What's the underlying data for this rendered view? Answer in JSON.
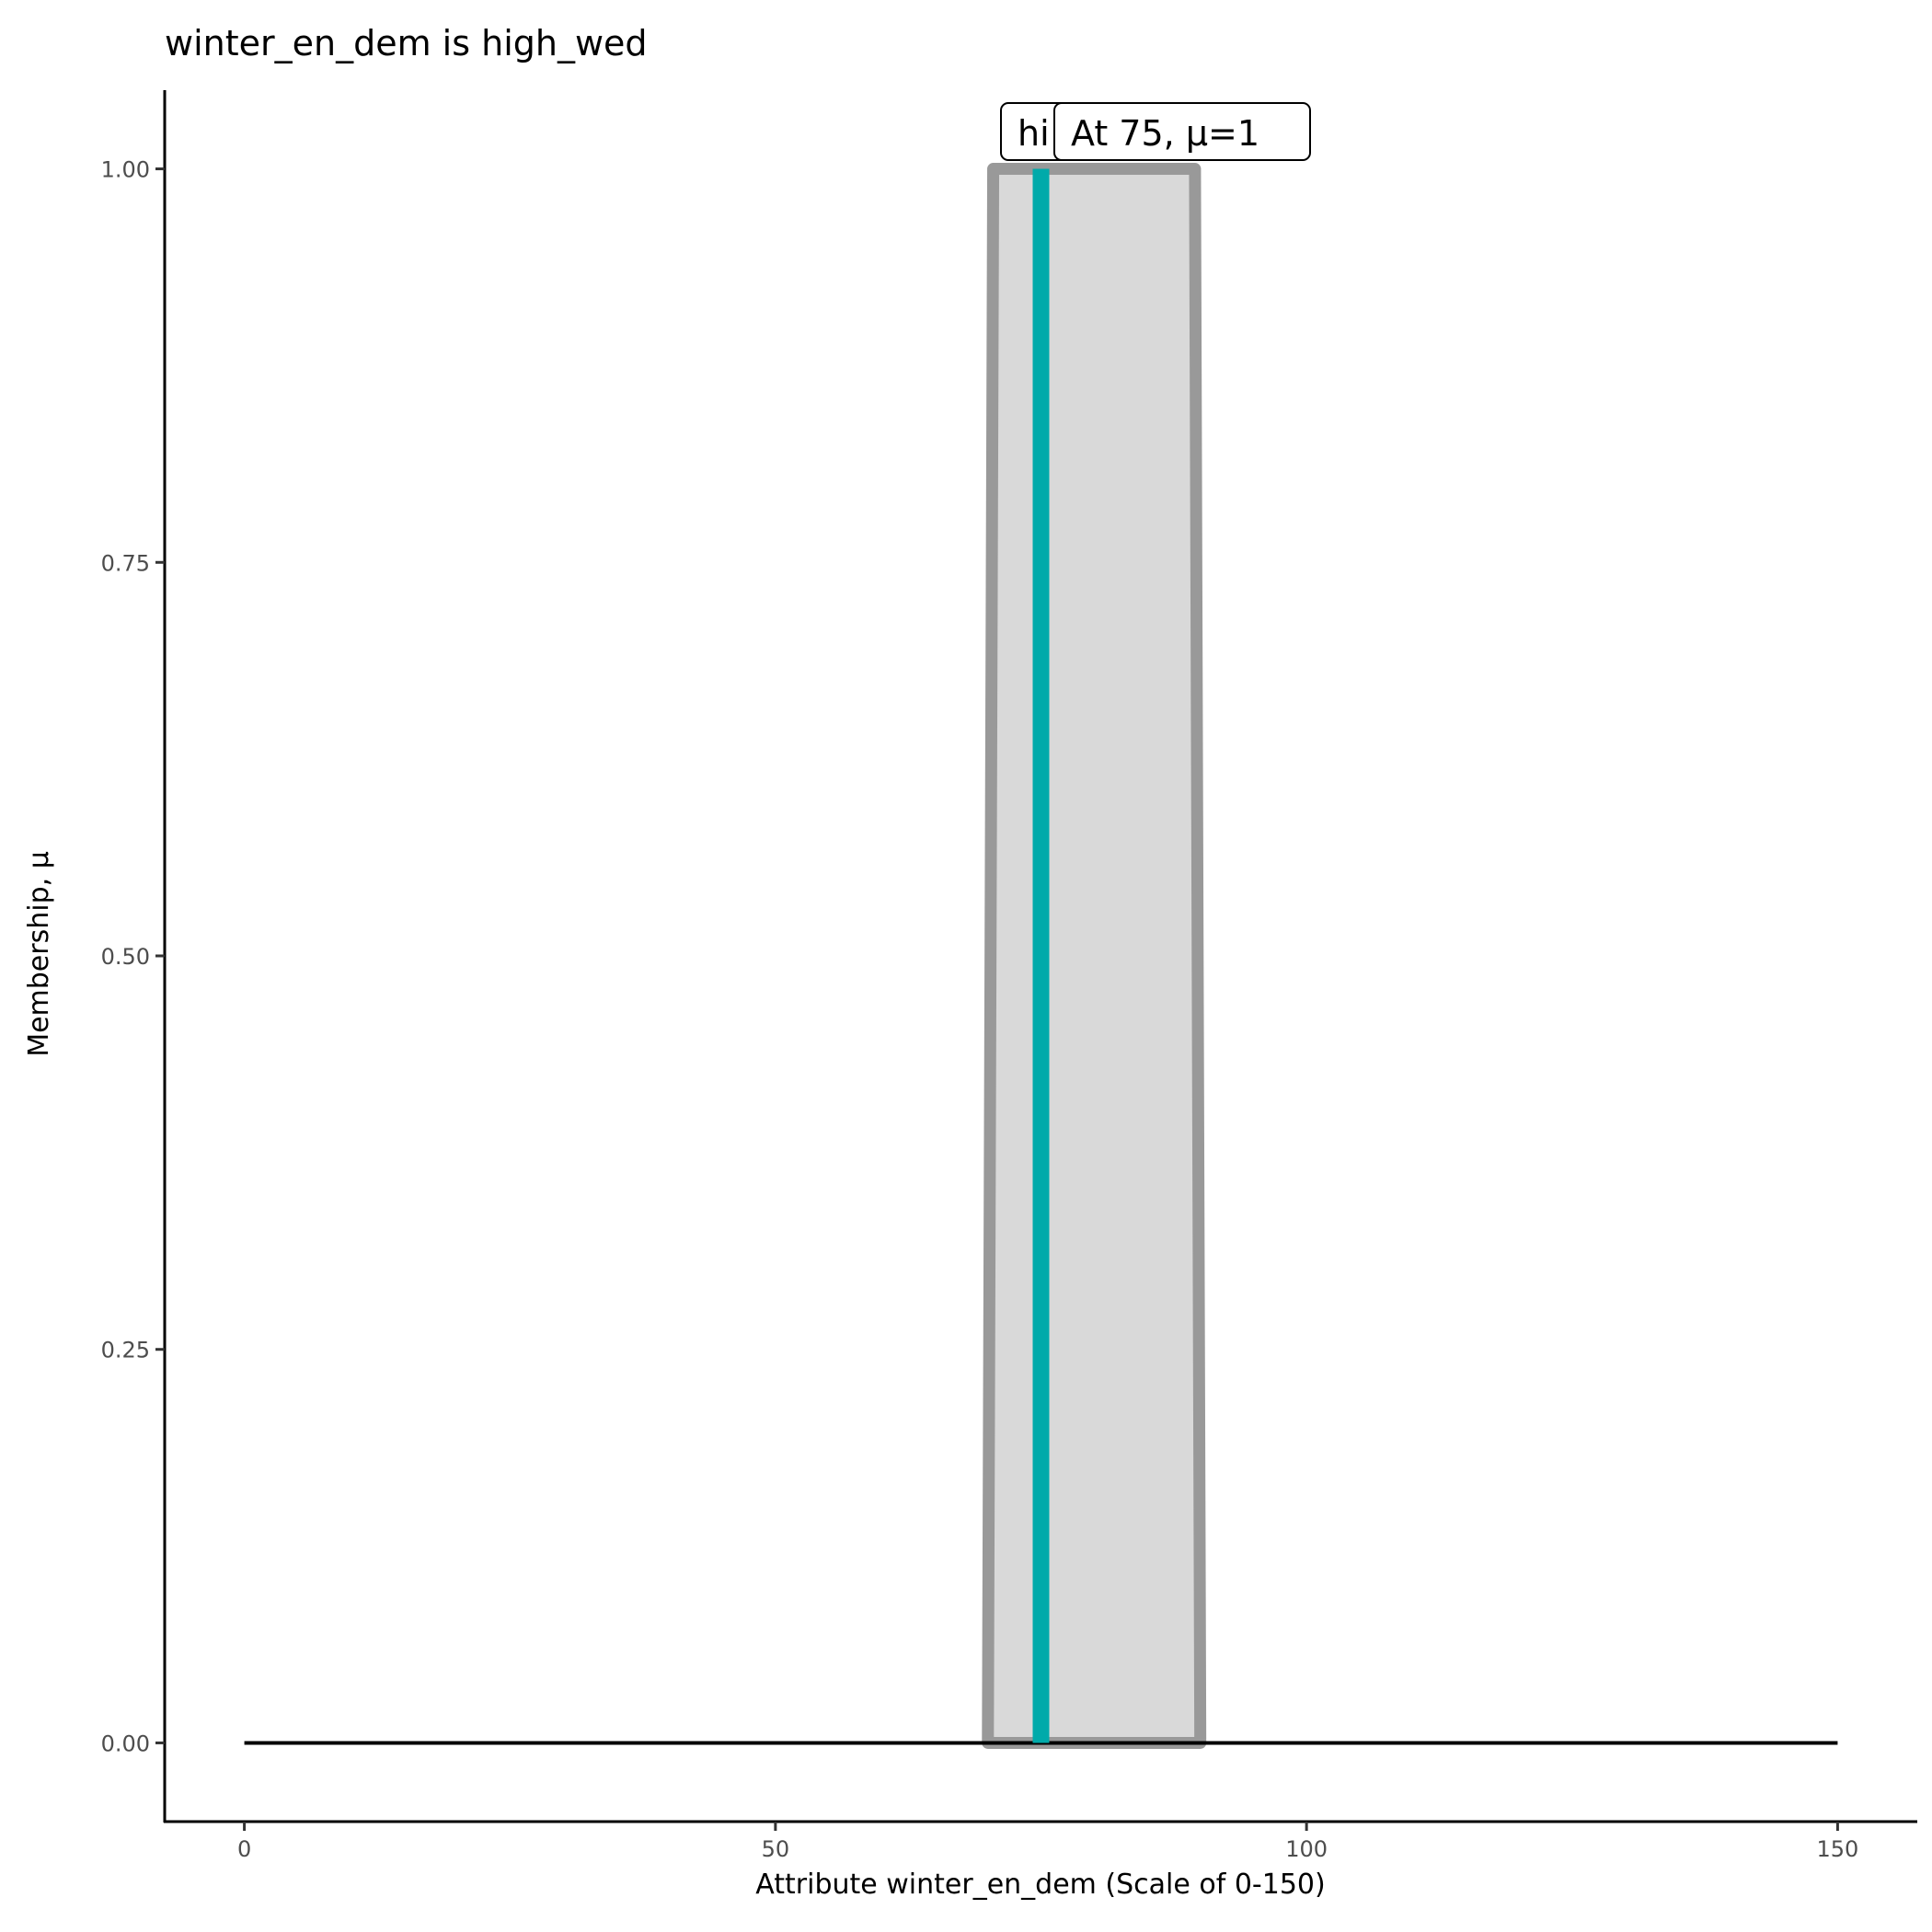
{
  "chart_data": {
    "type": "area",
    "title": "winter_en_dem is high_wed",
    "xlabel": "Attribute winter_en_dem (Scale of 0-150)",
    "ylabel": "Membership, μ",
    "xlim": [
      -7.5,
      157.5
    ],
    "ylim": [
      -0.05,
      1.05
    ],
    "x_ticks": [
      0,
      50,
      100,
      150
    ],
    "x_tick_labels": [
      "0",
      "50",
      "100",
      "150"
    ],
    "y_ticks": [
      0,
      0.25,
      0.5,
      0.75,
      1
    ],
    "y_tick_labels": [
      "0.00",
      "0.25",
      "0.50",
      "0.75",
      "1.00"
    ],
    "grid": false,
    "baseline": {
      "x": [
        0,
        150
      ],
      "y": [
        0,
        0
      ],
      "color": "#000000"
    },
    "membership_function": {
      "x": [
        70,
        70.5,
        89.5,
        90
      ],
      "y": [
        0,
        1,
        1,
        0
      ],
      "fill": "#d9d9d9",
      "stroke": "#999999"
    },
    "marker": {
      "x": 75,
      "mu": 1,
      "color": "#00aaaa"
    },
    "annotations": [
      {
        "text": "hi",
        "x": 75,
        "y": 1
      },
      {
        "text": "At 75, μ=1",
        "x": 75,
        "y": 1
      }
    ]
  }
}
